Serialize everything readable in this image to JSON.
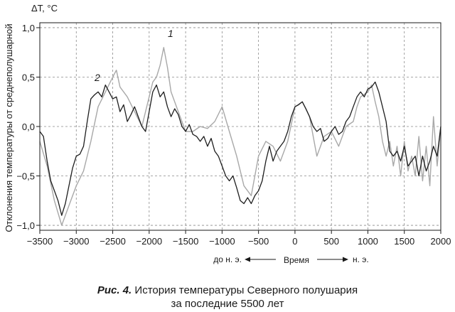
{
  "chart_data": {
    "type": "line",
    "title": "",
    "unit_label": "ΔT, °C",
    "ylabel": "Отклонения температуры от среднеполушарной",
    "xlabel": "Время",
    "era_before": "до н. э.",
    "era_after": "н. э.",
    "xlim": [
      -3500,
      2000
    ],
    "ylim": [
      -1.05,
      1.05
    ],
    "x_ticks": [
      -3500,
      -3000,
      -2500,
      -2000,
      -1500,
      -1000,
      -500,
      0,
      500,
      1000,
      1500,
      2000
    ],
    "x_tick_labels": [
      "−3500",
      "−3000",
      "−2500",
      "−2000",
      "−1500",
      "−1000",
      "−500",
      "0",
      "500",
      "1000",
      "1500",
      "2000"
    ],
    "y_ticks": [
      1.0,
      0.5,
      0.0,
      -0.5,
      -1.0
    ],
    "y_tick_labels": [
      "1,0",
      "0,5",
      "0,0",
      "−0,5",
      "−1,0"
    ],
    "grid": true,
    "series": [
      {
        "name": "1",
        "color": "#a8a8a8",
        "x": [
          -3500,
          -3400,
          -3300,
          -3200,
          -3100,
          -3000,
          -2900,
          -2800,
          -2700,
          -2600,
          -2500,
          -2450,
          -2400,
          -2300,
          -2200,
          -2100,
          -2000,
          -1950,
          -1900,
          -1850,
          -1800,
          -1750,
          -1700,
          -1600,
          -1500,
          -1400,
          -1300,
          -1200,
          -1100,
          -1000,
          -900,
          -800,
          -700,
          -600,
          -500,
          -400,
          -300,
          -200,
          -100,
          0,
          100,
          200,
          300,
          400,
          500,
          600,
          700,
          800,
          850,
          900,
          1000,
          1050,
          1100,
          1150,
          1200,
          1250,
          1300,
          1350,
          1400,
          1450,
          1500,
          1550,
          1600,
          1650,
          1700,
          1750,
          1800,
          1850,
          1900,
          1950,
          2000
        ],
        "y": [
          -0.15,
          -0.4,
          -0.75,
          -1.0,
          -0.8,
          -0.6,
          -0.45,
          -0.15,
          0.2,
          0.35,
          0.5,
          0.57,
          0.4,
          0.3,
          0.15,
          0.0,
          0.3,
          0.45,
          0.5,
          0.62,
          0.8,
          0.6,
          0.35,
          0.15,
          -0.05,
          -0.05,
          0.0,
          -0.02,
          0.05,
          0.2,
          -0.05,
          -0.3,
          -0.6,
          -0.7,
          -0.3,
          -0.15,
          -0.2,
          -0.35,
          -0.15,
          0.2,
          0.25,
          0.1,
          -0.3,
          -0.1,
          -0.05,
          -0.2,
          0.0,
          0.05,
          0.2,
          0.3,
          0.35,
          0.42,
          0.25,
          0.1,
          -0.15,
          -0.3,
          -0.15,
          -0.4,
          -0.2,
          -0.5,
          -0.15,
          -0.45,
          -0.3,
          -0.5,
          -0.1,
          -0.55,
          -0.2,
          -0.6,
          0.1,
          -0.4,
          0.0
        ]
      },
      {
        "name": "2",
        "color": "#1e1e1e",
        "x": [
          -3500,
          -3450,
          -3400,
          -3350,
          -3300,
          -3250,
          -3200,
          -3150,
          -3100,
          -3050,
          -3000,
          -2950,
          -2900,
          -2850,
          -2800,
          -2750,
          -2700,
          -2650,
          -2600,
          -2550,
          -2500,
          -2450,
          -2400,
          -2350,
          -2300,
          -2250,
          -2200,
          -2150,
          -2100,
          -2050,
          -2000,
          -1950,
          -1900,
          -1850,
          -1800,
          -1750,
          -1700,
          -1650,
          -1600,
          -1550,
          -1500,
          -1450,
          -1400,
          -1350,
          -1300,
          -1250,
          -1200,
          -1150,
          -1100,
          -1050,
          -1000,
          -950,
          -900,
          -850,
          -800,
          -750,
          -700,
          -650,
          -600,
          -550,
          -500,
          -450,
          -400,
          -350,
          -300,
          -250,
          -200,
          -150,
          -100,
          -50,
          0,
          50,
          100,
          150,
          200,
          250,
          300,
          350,
          400,
          450,
          500,
          550,
          600,
          650,
          700,
          750,
          800,
          850,
          900,
          950,
          1000,
          1050,
          1100,
          1150,
          1200,
          1250,
          1300,
          1350,
          1400,
          1450,
          1500,
          1550,
          1600,
          1650,
          1700,
          1750,
          1800,
          1850,
          1900,
          1950,
          2000
        ],
        "y": [
          -0.05,
          -0.1,
          -0.35,
          -0.55,
          -0.65,
          -0.75,
          -0.9,
          -0.78,
          -0.6,
          -0.42,
          -0.3,
          -0.28,
          -0.2,
          0.05,
          0.28,
          0.32,
          0.35,
          0.3,
          0.42,
          0.35,
          0.28,
          0.3,
          0.15,
          0.22,
          0.05,
          0.12,
          0.2,
          0.1,
          0.0,
          -0.05,
          0.15,
          0.35,
          0.42,
          0.3,
          0.35,
          0.2,
          0.1,
          0.18,
          0.12,
          0.0,
          -0.05,
          0.02,
          -0.08,
          -0.1,
          -0.15,
          -0.1,
          -0.2,
          -0.12,
          -0.25,
          -0.3,
          -0.4,
          -0.5,
          -0.55,
          -0.5,
          -0.62,
          -0.75,
          -0.78,
          -0.72,
          -0.78,
          -0.7,
          -0.65,
          -0.55,
          -0.35,
          -0.2,
          -0.35,
          -0.25,
          -0.2,
          -0.15,
          -0.05,
          0.1,
          0.2,
          0.22,
          0.25,
          0.18,
          0.1,
          0.0,
          -0.05,
          -0.02,
          -0.15,
          -0.12,
          -0.05,
          0.0,
          -0.08,
          -0.05,
          0.05,
          0.1,
          0.2,
          0.3,
          0.35,
          0.3,
          0.38,
          0.4,
          0.45,
          0.35,
          0.2,
          0.05,
          -0.25,
          -0.3,
          -0.25,
          -0.35,
          -0.2,
          -0.4,
          -0.35,
          -0.3,
          -0.5,
          -0.3,
          -0.45,
          -0.35,
          -0.2,
          -0.3,
          0.0
        ]
      }
    ]
  },
  "caption": {
    "figure_label": "Рис. 4.",
    "line1": "История температуры Северного полушария",
    "line2": "за последние 5500 лет"
  }
}
